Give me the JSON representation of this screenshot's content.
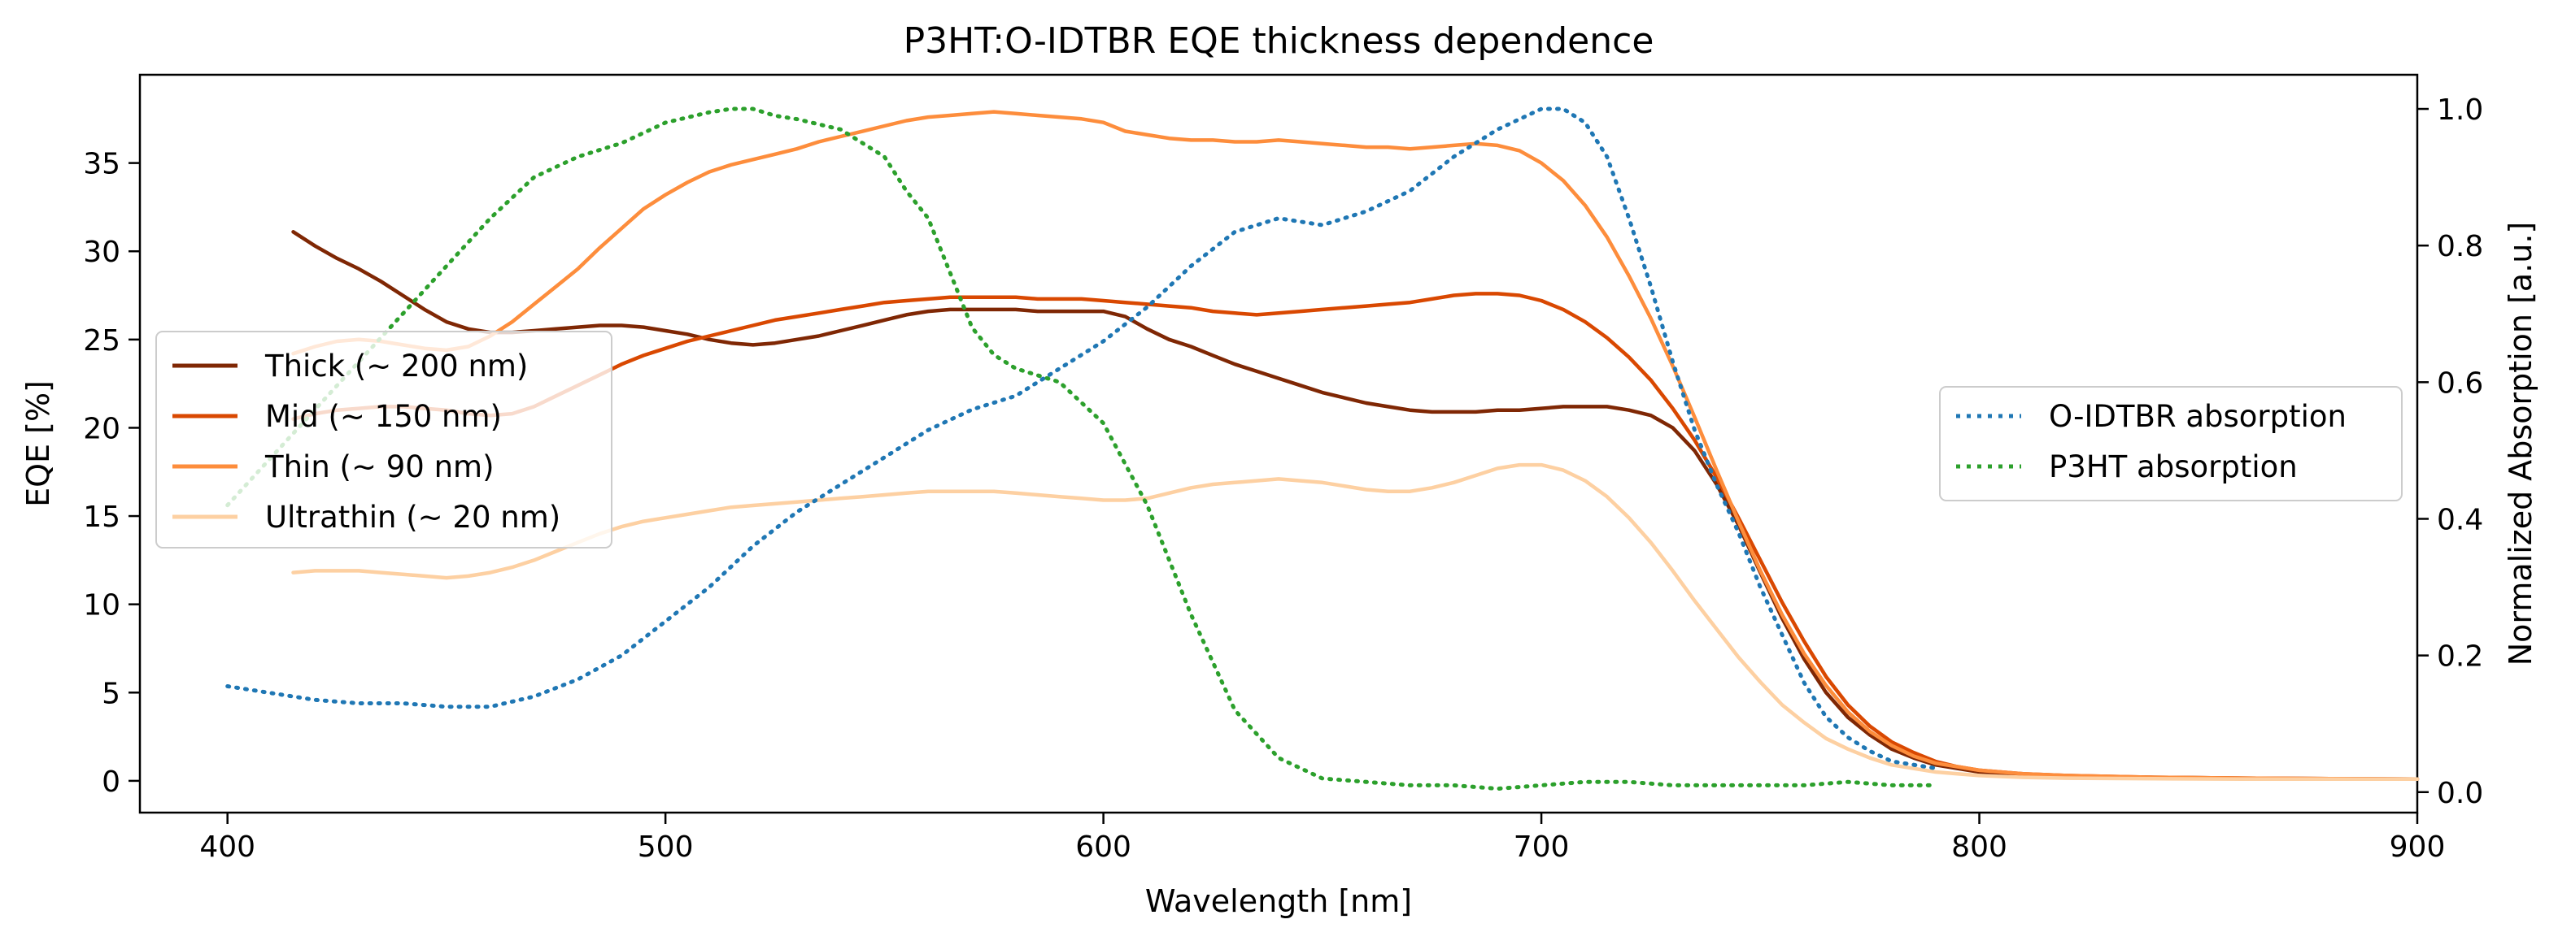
{
  "chart_data": {
    "type": "line",
    "title": "P3HT:O-IDTBR EQE thickness dependence",
    "xlabel": "Wavelength [nm]",
    "ylabel": "EQE [%]",
    "y2label": "Normalized Absorption [a.u.]",
    "xlim": [
      380,
      900
    ],
    "ylim": [
      -1.8,
      40
    ],
    "y2lim": [
      -0.03,
      1.05
    ],
    "xticks": [
      400,
      500,
      600,
      700,
      800,
      900
    ],
    "yticks": [
      0,
      5,
      10,
      15,
      20,
      25,
      30,
      35
    ],
    "y2ticks": [
      0.0,
      0.2,
      0.4,
      0.6,
      0.8,
      1.0
    ],
    "grid": false,
    "legend_left_placement": "center-left",
    "legend_right_placement": "center-right",
    "series": [
      {
        "name": "Thick (~ 200 nm)",
        "axis": "left",
        "color": "#7f2704",
        "style": "solid",
        "x": [
          415,
          420,
          425,
          430,
          435,
          440,
          445,
          450,
          455,
          460,
          465,
          470,
          475,
          480,
          485,
          490,
          495,
          500,
          505,
          510,
          515,
          520,
          525,
          530,
          535,
          540,
          545,
          550,
          555,
          560,
          565,
          570,
          575,
          580,
          585,
          590,
          595,
          600,
          605,
          610,
          615,
          620,
          625,
          630,
          635,
          640,
          645,
          650,
          655,
          660,
          665,
          670,
          675,
          680,
          685,
          690,
          695,
          700,
          705,
          710,
          715,
          720,
          725,
          730,
          735,
          740,
          745,
          750,
          755,
          760,
          765,
          770,
          775,
          780,
          785,
          790,
          795,
          800,
          810,
          820,
          840,
          860,
          880,
          900
        ],
        "y": [
          31.1,
          30.3,
          29.6,
          29.0,
          28.3,
          27.5,
          26.7,
          26.0,
          25.6,
          25.4,
          25.4,
          25.5,
          25.6,
          25.7,
          25.8,
          25.8,
          25.7,
          25.5,
          25.3,
          25.0,
          24.8,
          24.7,
          24.8,
          25.0,
          25.2,
          25.5,
          25.8,
          26.1,
          26.4,
          26.6,
          26.7,
          26.7,
          26.7,
          26.7,
          26.6,
          26.6,
          26.6,
          26.6,
          26.3,
          25.6,
          25.0,
          24.6,
          24.1,
          23.6,
          23.2,
          22.8,
          22.4,
          22.0,
          21.7,
          21.4,
          21.2,
          21.0,
          20.9,
          20.9,
          20.9,
          21.0,
          21.0,
          21.1,
          21.2,
          21.2,
          21.2,
          21.0,
          20.7,
          20.0,
          18.7,
          16.8,
          14.5,
          11.8,
          9.2,
          6.9,
          5.0,
          3.6,
          2.6,
          1.8,
          1.3,
          0.9,
          0.7,
          0.5,
          0.35,
          0.25,
          0.2,
          0.15,
          0.12,
          0.1
        ]
      },
      {
        "name": "Mid (~ 150 nm)",
        "axis": "left",
        "color": "#d94801",
        "style": "solid",
        "x": [
          415,
          420,
          425,
          430,
          435,
          440,
          445,
          450,
          455,
          460,
          465,
          470,
          475,
          480,
          485,
          490,
          495,
          500,
          505,
          510,
          515,
          520,
          525,
          530,
          535,
          540,
          545,
          550,
          555,
          560,
          565,
          570,
          575,
          580,
          585,
          590,
          595,
          600,
          605,
          610,
          615,
          620,
          625,
          630,
          635,
          640,
          645,
          650,
          655,
          660,
          665,
          670,
          675,
          680,
          685,
          690,
          695,
          700,
          705,
          710,
          715,
          720,
          725,
          730,
          735,
          740,
          745,
          750,
          755,
          760,
          765,
          770,
          775,
          780,
          785,
          790,
          795,
          800,
          810,
          820,
          840,
          860,
          880,
          900
        ],
        "y": [
          20.5,
          20.8,
          21.0,
          21.1,
          21.2,
          21.2,
          21.1,
          21.0,
          20.8,
          20.7,
          20.8,
          21.2,
          21.8,
          22.4,
          23.0,
          23.6,
          24.1,
          24.5,
          24.9,
          25.2,
          25.5,
          25.8,
          26.1,
          26.3,
          26.5,
          26.7,
          26.9,
          27.1,
          27.2,
          27.3,
          27.4,
          27.4,
          27.4,
          27.4,
          27.3,
          27.3,
          27.3,
          27.2,
          27.1,
          27.0,
          26.9,
          26.8,
          26.6,
          26.5,
          26.4,
          26.5,
          26.6,
          26.7,
          26.8,
          26.9,
          27.0,
          27.1,
          27.3,
          27.5,
          27.6,
          27.6,
          27.5,
          27.2,
          26.7,
          26.0,
          25.1,
          24.0,
          22.7,
          21.1,
          19.3,
          17.2,
          14.9,
          12.5,
          10.1,
          7.9,
          5.9,
          4.3,
          3.1,
          2.2,
          1.6,
          1.1,
          0.8,
          0.6,
          0.4,
          0.3,
          0.2,
          0.15,
          0.12,
          0.1
        ]
      },
      {
        "name": "Thin (~ 90 nm)",
        "axis": "left",
        "color": "#fd8d3c",
        "style": "solid",
        "x": [
          415,
          420,
          425,
          430,
          435,
          440,
          445,
          450,
          455,
          460,
          465,
          470,
          475,
          480,
          485,
          490,
          495,
          500,
          505,
          510,
          515,
          520,
          525,
          530,
          535,
          540,
          545,
          550,
          555,
          560,
          565,
          570,
          575,
          580,
          585,
          590,
          595,
          600,
          605,
          610,
          615,
          620,
          625,
          630,
          635,
          640,
          645,
          650,
          655,
          660,
          665,
          670,
          675,
          680,
          685,
          690,
          695,
          700,
          705,
          710,
          715,
          720,
          725,
          730,
          735,
          740,
          745,
          750,
          755,
          760,
          765,
          770,
          775,
          780,
          785,
          790,
          795,
          800,
          810,
          820,
          840,
          860,
          880,
          900
        ],
        "y": [
          24.2,
          24.6,
          24.9,
          25.0,
          24.9,
          24.7,
          24.5,
          24.4,
          24.6,
          25.2,
          26.0,
          27.0,
          28.0,
          29.0,
          30.2,
          31.3,
          32.4,
          33.2,
          33.9,
          34.5,
          34.9,
          35.2,
          35.5,
          35.8,
          36.2,
          36.5,
          36.8,
          37.1,
          37.4,
          37.6,
          37.7,
          37.8,
          37.9,
          37.8,
          37.7,
          37.6,
          37.5,
          37.3,
          36.8,
          36.6,
          36.4,
          36.3,
          36.3,
          36.2,
          36.2,
          36.3,
          36.2,
          36.1,
          36.0,
          35.9,
          35.9,
          35.8,
          35.9,
          36.0,
          36.1,
          36.0,
          35.7,
          35.0,
          34.0,
          32.6,
          30.8,
          28.6,
          26.2,
          23.5,
          20.6,
          17.6,
          14.7,
          11.9,
          9.4,
          7.2,
          5.4,
          3.9,
          2.8,
          2.0,
          1.4,
          1.0,
          0.8,
          0.6,
          0.4,
          0.3,
          0.2,
          0.15,
          0.12,
          0.1
        ]
      },
      {
        "name": "Ultrathin (~ 20 nm)",
        "axis": "left",
        "color": "#fdd0a2",
        "style": "solid",
        "x": [
          415,
          420,
          425,
          430,
          435,
          440,
          445,
          450,
          455,
          460,
          465,
          470,
          475,
          480,
          485,
          490,
          495,
          500,
          505,
          510,
          515,
          520,
          525,
          530,
          535,
          540,
          545,
          550,
          555,
          560,
          565,
          570,
          575,
          580,
          585,
          590,
          595,
          600,
          605,
          610,
          615,
          620,
          625,
          630,
          635,
          640,
          645,
          650,
          655,
          660,
          665,
          670,
          675,
          680,
          685,
          690,
          695,
          700,
          705,
          710,
          715,
          720,
          725,
          730,
          735,
          740,
          745,
          750,
          755,
          760,
          765,
          770,
          775,
          780,
          785,
          790,
          795,
          800,
          810,
          820,
          840,
          860,
          880,
          900
        ],
        "y": [
          11.8,
          11.9,
          11.9,
          11.9,
          11.8,
          11.7,
          11.6,
          11.5,
          11.6,
          11.8,
          12.1,
          12.5,
          13.0,
          13.5,
          14.0,
          14.4,
          14.7,
          14.9,
          15.1,
          15.3,
          15.5,
          15.6,
          15.7,
          15.8,
          15.9,
          16.0,
          16.1,
          16.2,
          16.3,
          16.4,
          16.4,
          16.4,
          16.4,
          16.3,
          16.2,
          16.1,
          16.0,
          15.9,
          15.9,
          16.0,
          16.3,
          16.6,
          16.8,
          16.9,
          17.0,
          17.1,
          17.0,
          16.9,
          16.7,
          16.5,
          16.4,
          16.4,
          16.6,
          16.9,
          17.3,
          17.7,
          17.9,
          17.9,
          17.6,
          17.0,
          16.1,
          14.9,
          13.5,
          11.9,
          10.2,
          8.6,
          7.0,
          5.6,
          4.3,
          3.3,
          2.4,
          1.8,
          1.3,
          0.9,
          0.7,
          0.5,
          0.4,
          0.3,
          0.2,
          0.15,
          0.12,
          0.1,
          0.1,
          0.1
        ]
      },
      {
        "name": "O-IDTBR absorption",
        "axis": "right",
        "color": "#1f77b4",
        "style": "dotted",
        "x": [
          400,
          410,
          420,
          430,
          440,
          450,
          460,
          470,
          480,
          490,
          500,
          510,
          520,
          530,
          540,
          550,
          560,
          570,
          580,
          590,
          600,
          610,
          620,
          630,
          640,
          650,
          660,
          670,
          680,
          690,
          700,
          705,
          710,
          715,
          720,
          725,
          730,
          735,
          740,
          745,
          750,
          755,
          760,
          765,
          770,
          775,
          780,
          790
        ],
        "y": [
          0.155,
          0.145,
          0.135,
          0.13,
          0.13,
          0.125,
          0.125,
          0.14,
          0.165,
          0.2,
          0.25,
          0.3,
          0.36,
          0.41,
          0.45,
          0.49,
          0.53,
          0.56,
          0.58,
          0.62,
          0.66,
          0.71,
          0.77,
          0.82,
          0.84,
          0.83,
          0.85,
          0.88,
          0.93,
          0.97,
          1.0,
          1.0,
          0.98,
          0.93,
          0.84,
          0.74,
          0.63,
          0.53,
          0.45,
          0.38,
          0.3,
          0.23,
          0.16,
          0.11,
          0.08,
          0.06,
          0.045,
          0.035
        ]
      },
      {
        "name": "P3HT absorption",
        "axis": "right",
        "color": "#2ca02c",
        "style": "dotted",
        "x": [
          400,
          410,
          420,
          430,
          440,
          450,
          460,
          470,
          480,
          490,
          500,
          510,
          515,
          520,
          525,
          530,
          540,
          550,
          555,
          560,
          565,
          570,
          575,
          580,
          590,
          600,
          610,
          620,
          630,
          640,
          650,
          660,
          670,
          680,
          690,
          700,
          710,
          720,
          730,
          740,
          750,
          760,
          770,
          780,
          790
        ],
        "y": [
          0.42,
          0.49,
          0.56,
          0.63,
          0.7,
          0.77,
          0.84,
          0.9,
          0.93,
          0.95,
          0.98,
          0.995,
          1.0,
          1.0,
          0.99,
          0.985,
          0.97,
          0.93,
          0.88,
          0.84,
          0.76,
          0.68,
          0.64,
          0.62,
          0.6,
          0.54,
          0.42,
          0.26,
          0.12,
          0.05,
          0.02,
          0.015,
          0.01,
          0.01,
          0.005,
          0.01,
          0.015,
          0.015,
          0.01,
          0.01,
          0.01,
          0.01,
          0.015,
          0.01,
          0.01
        ]
      }
    ]
  }
}
